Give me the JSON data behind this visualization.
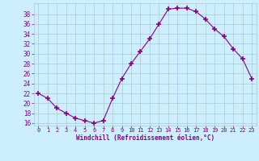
{
  "x": [
    0,
    1,
    2,
    3,
    4,
    5,
    6,
    7,
    8,
    9,
    10,
    11,
    12,
    13,
    14,
    15,
    16,
    17,
    18,
    19,
    20,
    21,
    22,
    23
  ],
  "y": [
    22,
    21,
    19,
    18,
    17,
    16.5,
    16,
    16.5,
    21,
    25,
    28,
    30.5,
    33,
    36,
    39,
    39.2,
    39.2,
    38.5,
    37,
    35,
    33.5,
    31,
    29,
    25
  ],
  "line_color": "#880088",
  "marker": "+",
  "marker_size": 4,
  "bg_color": "#cceeff",
  "grid_color": "#aacccc",
  "xlabel": "Windchill (Refroidissement éolien,°C)",
  "xlabel_color": "#880088",
  "tick_color": "#880088",
  "ylabel_ticks": [
    16,
    18,
    20,
    22,
    24,
    26,
    28,
    30,
    32,
    34,
    36,
    38
  ],
  "xlim": [
    -0.5,
    23.5
  ],
  "ylim": [
    15.5,
    40.2
  ],
  "xtick_labels": [
    "0",
    "1",
    "2",
    "3",
    "4",
    "5",
    "6",
    "7",
    "8",
    "9",
    "10",
    "11",
    "12",
    "13",
    "14",
    "15",
    "16",
    "17",
    "18",
    "19",
    "20",
    "21",
    "22",
    "23"
  ]
}
